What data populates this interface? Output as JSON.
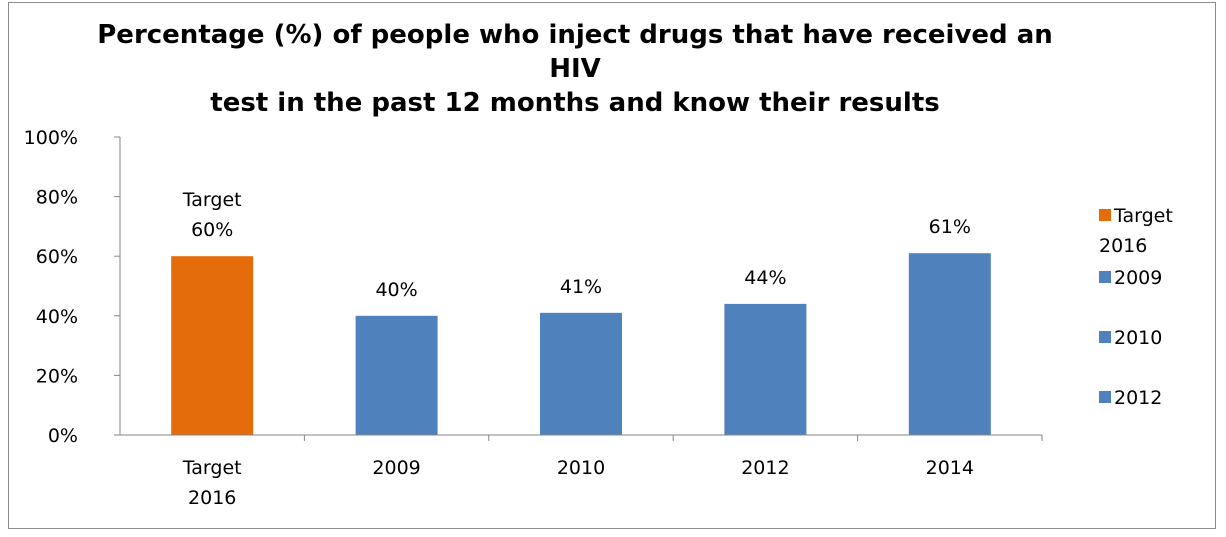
{
  "chart_data": {
    "type": "bar",
    "title": "Percentage (%) of people who inject drugs that have received an HIV\ntest in the past 12 months and  know their results",
    "categories": [
      [
        "Target",
        "2016"
      ],
      [
        "2009"
      ],
      [
        "2010"
      ],
      [
        "2012"
      ],
      [
        "2014"
      ]
    ],
    "values": [
      60,
      40,
      41,
      44,
      61
    ],
    "data_labels": [
      [
        "Target",
        "60%"
      ],
      [
        "40%"
      ],
      [
        "41%"
      ],
      [
        "44%"
      ],
      [
        "61%"
      ]
    ],
    "bar_colors": [
      "#E46C0A",
      "#4F81BD",
      "#4F81BD",
      "#4F81BD",
      "#4F81BD"
    ],
    "y_ticks": [
      "0%",
      "20%",
      "40%",
      "60%",
      "80%",
      "100%"
    ],
    "ylim": [
      0,
      100
    ],
    "grid": false,
    "legend": {
      "position": "right",
      "items": [
        {
          "label": [
            "Target",
            "2016"
          ],
          "color": "#E46C0A"
        },
        {
          "label": [
            "2009"
          ],
          "color": "#4F81BD"
        },
        {
          "label": [
            "2010"
          ],
          "color": "#4F81BD"
        },
        {
          "label": [
            "2012"
          ],
          "color": "#4F81BD"
        }
      ]
    }
  }
}
